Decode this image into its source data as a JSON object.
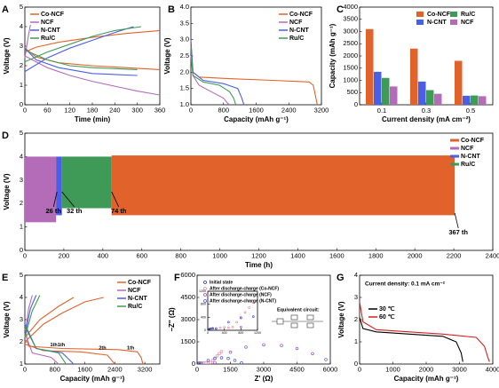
{
  "chart_data": [
    {
      "panel": "A",
      "type": "line",
      "xlabel": "Time (min)",
      "ylabel": "Voltage (V)",
      "xlim": [
        0,
        360
      ],
      "xticks": [
        0,
        60,
        120,
        180,
        240,
        300,
        360
      ],
      "ylim": [
        0,
        5
      ],
      "yticks": [
        0,
        1,
        2,
        3,
        4,
        5
      ],
      "legend": "upper-left",
      "series": [
        {
          "name": "Co-NCF",
          "color": "#e2622b",
          "curves": [
            {
              "x": [
                0,
                30,
                90,
                180,
                270,
                360
              ],
              "y": [
                2.9,
                2.45,
                2.15,
                2.0,
                1.9,
                1.8
              ]
            },
            {
              "x": [
                0,
                30,
                90,
                180,
                270,
                360
              ],
              "y": [
                2.7,
                2.95,
                3.2,
                3.45,
                3.65,
                3.8
              ]
            }
          ]
        },
        {
          "name": "NCF",
          "color": "#b46bb8",
          "curves": [
            {
              "x": [
                0,
                60,
                120,
                180,
                240,
                300,
                360
              ],
              "y": [
                2.5,
                1.9,
                1.5,
                1.2,
                0.95,
                0.7,
                0.5
              ]
            },
            {
              "x": [
                0,
                5,
                10,
                15
              ],
              "y": [
                2.4,
                3.0,
                3.6,
                4.1
              ]
            }
          ]
        },
        {
          "name": "N-CNT",
          "color": "#4b5ee6",
          "curves": [
            {
              "x": [
                0,
                30,
                90,
                180,
                240,
                300
              ],
              "y": [
                2.9,
                2.3,
                1.9,
                1.6,
                1.55,
                1.5
              ]
            },
            {
              "x": [
                0,
                60,
                120,
                180,
                240,
                290
              ],
              "y": [
                1.7,
                2.4,
                2.9,
                3.3,
                3.7,
                4.0
              ]
            }
          ]
        },
        {
          "name": "Ru/C",
          "color": "#3f9a57",
          "curves": [
            {
              "x": [
                0,
                60,
                120,
                180,
                240,
                300
              ],
              "y": [
                2.8,
                2.3,
                2.0,
                1.9,
                1.85,
                1.8
              ]
            },
            {
              "x": [
                0,
                60,
                120,
                180,
                240,
                310
              ],
              "y": [
                2.2,
                2.7,
                3.1,
                3.5,
                3.8,
                4.0
              ]
            }
          ]
        }
      ]
    },
    {
      "panel": "B",
      "type": "line",
      "xlabel": "Capacity (mAh g⁻¹)",
      "ylabel": "Voltage (V)",
      "xlim": [
        0,
        3200
      ],
      "xticks": [
        0,
        800,
        1600,
        2400,
        3200
      ],
      "ylim": [
        1,
        4
      ],
      "yticks": [
        {
          "value": 1,
          "label": "1.0"
        },
        1.5,
        {
          "value": 2,
          "label": "2.0"
        },
        2.5,
        {
          "value": 3,
          "label": "3.0"
        },
        3.5,
        {
          "value": 4,
          "label": "4.0"
        }
      ],
      "legend": "upper-right",
      "series": [
        {
          "name": "Co-NCF",
          "color": "#e2622b",
          "curves": [
            {
              "x": [
                0,
                50,
                200,
                1000,
                2000,
                2900,
                3000,
                3050,
                3100
              ],
              "y": [
                2.9,
                2.0,
                1.85,
                1.8,
                1.75,
                1.7,
                1.6,
                1.3,
                1.0
              ]
            }
          ]
        },
        {
          "name": "NCF",
          "color": "#b46bb8",
          "curves": [
            {
              "x": [
                0,
                50,
                200,
                500,
                800,
                900,
                950
              ],
              "y": [
                2.5,
                1.9,
                1.6,
                1.4,
                1.2,
                1.05,
                1.0
              ]
            }
          ]
        },
        {
          "name": "N-CNT",
          "color": "#4b5ee6",
          "curves": [
            {
              "x": [
                0,
                50,
                300,
                800,
                1150,
                1250,
                1300
              ],
              "y": [
                3.0,
                2.0,
                1.75,
                1.65,
                1.5,
                1.2,
                1.0
              ]
            }
          ]
        },
        {
          "name": "Ru/C",
          "color": "#3f9a57",
          "curves": [
            {
              "x": [
                0,
                50,
                300,
                700,
                950,
                1050,
                1100
              ],
              "y": [
                2.8,
                1.9,
                1.7,
                1.6,
                1.4,
                1.2,
                1.0
              ]
            }
          ]
        }
      ]
    },
    {
      "panel": "C",
      "type": "bar",
      "xlabel": "Current density (mA cm⁻²)",
      "ylabel": "Capacity (mAh g⁻¹)",
      "categories": [
        "0.1",
        "0.3",
        "0.5"
      ],
      "ylim": [
        0,
        4000
      ],
      "yticks": [
        0,
        500,
        1000,
        1500,
        2000,
        2500,
        3000,
        3500,
        4000
      ],
      "legend": "upper-right",
      "legend_columns": 2,
      "series": [
        {
          "name": "Co-NCF",
          "color": "#e2622b",
          "values": [
            3100,
            2300,
            1800
          ]
        },
        {
          "name": "N-CNT",
          "color": "#4b5ee6",
          "values": [
            1350,
            950,
            370
          ]
        },
        {
          "name": "Ru/C",
          "color": "#3f9a57",
          "values": [
            1100,
            600,
            380
          ]
        },
        {
          "name": "NCF",
          "color": "#b46bb8",
          "values": [
            750,
            450,
            350
          ]
        }
      ]
    },
    {
      "panel": "D",
      "type": "band",
      "xlabel": "Time (h)",
      "ylabel": "Voltage (V)",
      "xlim": [
        0,
        2400
      ],
      "xticks": [
        0,
        200,
        400,
        600,
        800,
        1000,
        1200,
        1400,
        1600,
        1800,
        2000,
        2200,
        2400
      ],
      "ylim": [
        0,
        5
      ],
      "yticks": [
        0,
        1,
        2,
        3,
        4,
        5
      ],
      "legend": "upper-right",
      "series": [
        {
          "name": "Co-NCF",
          "color": "#e2622b",
          "x": [
            445,
            2205
          ],
          "high": 4.05,
          "low": 1.5
        },
        {
          "name": "NCF",
          "color": "#b46bb8",
          "x": [
            0,
            160
          ],
          "high": 4.0,
          "low": 1.2
        },
        {
          "name": "N-CNT",
          "color": "#4b5ee6",
          "x": [
            160,
            190
          ],
          "high": 4.0,
          "low": 1.5
        },
        {
          "name": "Ru/C",
          "color": "#3f9a57",
          "x": [
            190,
            445
          ],
          "high": 4.0,
          "low": 1.8
        }
      ],
      "annotations": [
        {
          "text": "26 th",
          "x": 165
        },
        {
          "text": "32 th",
          "x": 190
        },
        {
          "text": "74 th",
          "x": 445
        },
        {
          "text": "367 th",
          "x": 2205
        }
      ]
    },
    {
      "panel": "E",
      "type": "line",
      "xlabel": "Capacity (mAh g⁻¹)",
      "ylabel": "Voltage (V)",
      "xlim": [
        0,
        3600
      ],
      "xticks": [
        0,
        800,
        1600,
        2400,
        3200
      ],
      "ylim": [
        1,
        5
      ],
      "yticks": [
        1,
        2,
        3,
        4,
        5
      ],
      "legend": "upper-right",
      "series": [
        {
          "name": "Co-NCF",
          "color": "#e2622b",
          "curves": [
            {
              "x": [
                0,
                100,
                1000,
                2500,
                3000,
                3100,
                3150
              ],
              "y": [
                2.6,
                1.8,
                1.7,
                1.65,
                1.55,
                1.3,
                1.0
              ],
              "label": "1th"
            },
            {
              "x": [
                0,
                500,
                1500,
                2200,
                2400
              ],
              "y": [
                1.9,
                1.6,
                1.55,
                1.4,
                1.0
              ],
              "label": "2th"
            },
            {
              "x": [
                0,
                500,
                1000,
                1600,
                2100
              ],
              "y": [
                2.0,
                2.8,
                3.3,
                3.8,
                4.0
              ]
            },
            {
              "x": [
                0,
                400,
                900,
                1300
              ],
              "y": [
                2.2,
                3.0,
                3.6,
                4.0
              ]
            }
          ]
        },
        {
          "name": "NCF",
          "color": "#b46bb8",
          "curves": [
            {
              "x": [
                0,
                200,
                700,
                900
              ],
              "y": [
                2.4,
                1.5,
                1.3,
                1.0
              ]
            },
            {
              "x": [
                0,
                100,
                200
              ],
              "y": [
                2.2,
                3.5,
                4.1
              ]
            }
          ]
        },
        {
          "name": "N-CNT",
          "color": "#4b5ee6",
          "curves": [
            {
              "x": [
                0,
                300,
                1000,
                1300
              ],
              "y": [
                2.8,
                1.7,
                1.5,
                1.0
              ],
              "label": "1th"
            },
            {
              "x": [
                0,
                150,
                300
              ],
              "y": [
                2.3,
                3.5,
                4.1
              ]
            }
          ]
        },
        {
          "name": "Ru/C",
          "color": "#3f9a57",
          "curves": [
            {
              "x": [
                0,
                300,
                900,
                1100
              ],
              "y": [
                2.7,
                1.7,
                1.5,
                1.0
              ],
              "label": "1th"
            },
            {
              "x": [
                0,
                200,
                400
              ],
              "y": [
                2.2,
                3.4,
                4.1
              ]
            }
          ]
        }
      ]
    },
    {
      "panel": "F",
      "type": "scatter",
      "xlabel": "Z' (Ω)",
      "ylabel": "−Z'' (Ω)",
      "xlim": [
        0,
        6000
      ],
      "xticks": [
        0,
        1500,
        3000,
        4500,
        6000
      ],
      "ylim": [
        0,
        6000
      ],
      "yticks": [
        0,
        1500,
        3000,
        4500,
        6000
      ],
      "legend": "upper-left",
      "circuit_label": "Equivalent circuit:",
      "series": [
        {
          "name": "Initial state",
          "color": "#2b3a8a",
          "x": [
            20,
            40,
            60,
            80,
            100,
            120
          ],
          "values": [
            10,
            30,
            40,
            35,
            45,
            60
          ]
        },
        {
          "name": "After discharge-charge (Co-NCF)",
          "color": "#e88aa0",
          "x": [
            100,
            200,
            300,
            400,
            500,
            600,
            700,
            800,
            900,
            1000,
            1100
          ],
          "values": [
            20,
            60,
            80,
            90,
            80,
            100,
            250,
            400,
            550,
            700,
            850
          ]
        },
        {
          "name": "After discharge-charge (NCF)",
          "color": "#9b4fc0",
          "x": [
            800,
            1500,
            2200,
            3000,
            3800,
            4500,
            5200,
            5800
          ],
          "values": [
            100,
            800,
            1150,
            1300,
            1250,
            1050,
            700,
            300
          ]
        },
        {
          "name": "After discharge-charge (N-CNT)",
          "color": "#4455e8",
          "x": [
            200,
            500,
            800,
            1100,
            1400,
            1700,
            2000
          ],
          "values": [
            50,
            250,
            380,
            420,
            380,
            250,
            80
          ]
        }
      ],
      "inset": {
        "xlim": [
          0,
          1200
        ],
        "xticks": [
          0,
          400,
          800,
          1200
        ],
        "ylim": [
          0,
          1200
        ],
        "yticks": [
          0,
          400,
          800,
          1200
        ]
      }
    },
    {
      "panel": "G",
      "type": "line",
      "xlabel": "Capacity (mAh g⁻¹)",
      "ylabel": "Voltage (V)",
      "xlim": [
        0,
        4000
      ],
      "xticks": [
        0,
        1000,
        2000,
        3000,
        4000
      ],
      "ylim": [
        0,
        4
      ],
      "yticks": [
        0,
        1,
        2,
        3,
        4
      ],
      "legend": "center-left",
      "note": "Current density: 0.1 mA cm⁻²",
      "series": [
        {
          "name": "30 ℃",
          "color": "#000000",
          "curves": [
            {
              "x": [
                0,
                100,
                500,
                1500,
                2500,
                2900,
                3050,
                3100
              ],
              "y": [
                2.1,
                1.6,
                1.45,
                1.35,
                1.25,
                1.0,
                0.5,
                0.1
              ]
            }
          ]
        },
        {
          "name": "60 ℃",
          "color": "#d42020",
          "curves": [
            {
              "x": [
                0,
                100,
                500,
                1500,
                2500,
                3500,
                3750,
                3850,
                3900
              ],
              "y": [
                2.8,
                1.9,
                1.55,
                1.45,
                1.35,
                1.2,
                0.8,
                0.3,
                0.1
              ]
            }
          ]
        }
      ]
    }
  ]
}
